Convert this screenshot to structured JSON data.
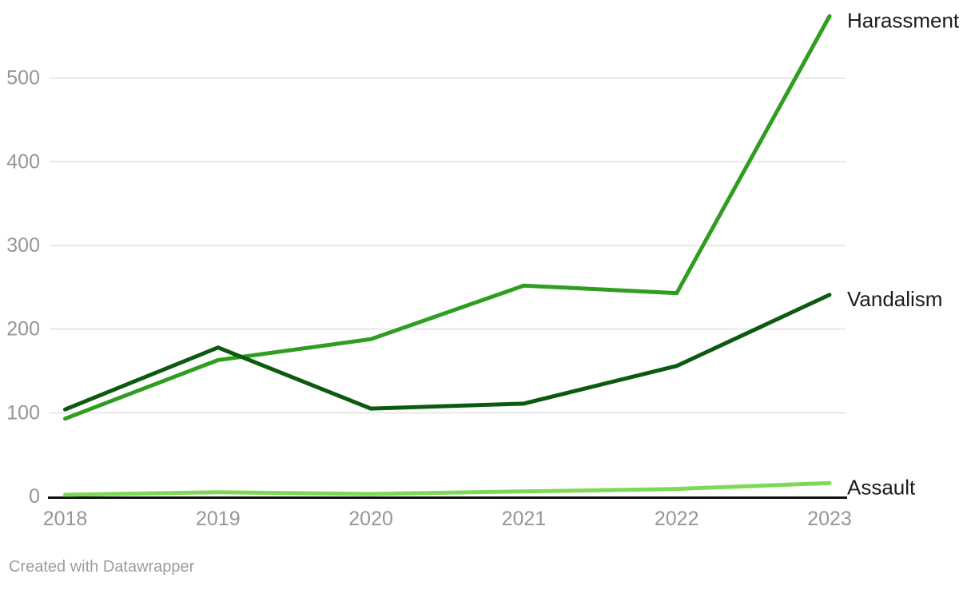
{
  "chart_data": {
    "type": "line",
    "title": "",
    "x": [
      "2018",
      "2019",
      "2020",
      "2021",
      "2022",
      "2023"
    ],
    "series": [
      {
        "name": "Harassment",
        "color": "#2f9e20",
        "values": [
          93,
          163,
          188,
          252,
          243,
          574
        ]
      },
      {
        "name": "Vandalism",
        "color": "#0c5a10",
        "values": [
          104,
          178,
          105,
          111,
          156,
          241
        ]
      },
      {
        "name": "Assault",
        "color": "#7ed957",
        "values": [
          2,
          5,
          3,
          6,
          9,
          16
        ]
      }
    ],
    "yticks": [
      0,
      100,
      200,
      300,
      400,
      500
    ],
    "ylim": [
      0,
      580
    ],
    "grid": "horizontal",
    "legend_position": "line-end-right-labels"
  },
  "colors": {
    "background": "#ffffff",
    "grid": "#e8e8e8",
    "axis": "#111111",
    "tick_label": "#969696",
    "series_label": "#1d1d1d"
  },
  "attribution": {
    "text": "Created with Datawrapper"
  }
}
